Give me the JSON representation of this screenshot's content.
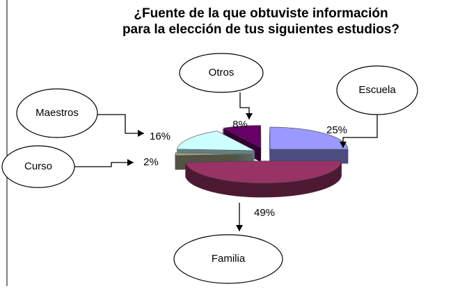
{
  "chart_data": {
    "type": "pie",
    "title": [
      "¿Fuente de la que obtuviste información",
      "para la elección de tus siguientes estudios?"
    ],
    "categories": [
      "Escuela",
      "Familia",
      "Curso",
      "Maestros",
      "Otros"
    ],
    "values": [
      25,
      49,
      2,
      16,
      8
    ],
    "value_labels": [
      "25%",
      "49%",
      "2%",
      "16%",
      "8%"
    ],
    "colors": [
      "#9999ff",
      "#993366",
      "#a3a38a",
      "#ccffff",
      "#660066"
    ]
  }
}
